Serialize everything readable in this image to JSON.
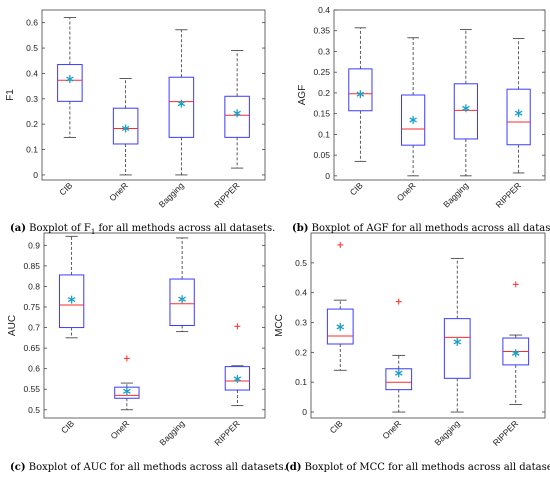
{
  "chart_data": [
    {
      "type": "boxplot",
      "panel": "a",
      "caption": {
        "tag": "(a)",
        "text": "Boxplot of F",
        "sub": "1",
        "tail": " for all methods across all datasets."
      },
      "ylabel": "F1",
      "ylim": [
        -0.02,
        0.65
      ],
      "yticks": [
        0,
        0.1,
        0.2,
        0.3,
        0.4,
        0.5,
        0.6
      ],
      "tick_labels": [
        "0",
        "0.1",
        "0.2",
        "0.3",
        "0.4",
        "0.5",
        "0.6"
      ],
      "categories": [
        "CIB",
        "OneR",
        "Bagging",
        "RIPPER"
      ],
      "boxes": [
        {
          "name": "CIB",
          "whisker_low": 0.148,
          "q1": 0.29,
          "median": 0.373,
          "q3": 0.435,
          "whisker_high": 0.62,
          "mean": 0.378,
          "outliers": []
        },
        {
          "name": "OneR",
          "whisker_low": 0.0,
          "q1": 0.122,
          "median": 0.183,
          "q3": 0.263,
          "whisker_high": 0.38,
          "mean": 0.183,
          "outliers": []
        },
        {
          "name": "Bagging",
          "whisker_low": 0.0,
          "q1": 0.148,
          "median": 0.289,
          "q3": 0.385,
          "whisker_high": 0.572,
          "mean": 0.281,
          "outliers": []
        },
        {
          "name": "RIPPER",
          "whisker_low": 0.027,
          "q1": 0.148,
          "median": 0.235,
          "q3": 0.31,
          "whisker_high": 0.49,
          "mean": 0.243,
          "outliers": []
        }
      ]
    },
    {
      "type": "boxplot",
      "panel": "b",
      "caption": {
        "tag": "(b)",
        "text": "Boxplot of AGF for all methods across all datasets."
      },
      "ylabel": "AGF",
      "ylim": [
        -0.01,
        0.4
      ],
      "yticks": [
        0,
        0.05,
        0.1,
        0.15,
        0.2,
        0.25,
        0.3,
        0.35,
        0.4
      ],
      "tick_labels": [
        "0",
        "0.05",
        "0.1",
        "0.15",
        "0.2",
        "0.25",
        "0.3",
        "0.35",
        "0.4"
      ],
      "categories": [
        "CIB",
        "OneR",
        "Bagging",
        "RIPPER"
      ],
      "boxes": [
        {
          "name": "CIB",
          "whisker_low": 0.035,
          "q1": 0.157,
          "median": 0.198,
          "q3": 0.258,
          "whisker_high": 0.357,
          "mean": 0.197,
          "outliers": []
        },
        {
          "name": "OneR",
          "whisker_low": 0.0,
          "q1": 0.074,
          "median": 0.113,
          "q3": 0.195,
          "whisker_high": 0.333,
          "mean": 0.135,
          "outliers": []
        },
        {
          "name": "Bagging",
          "whisker_low": 0.0,
          "q1": 0.089,
          "median": 0.158,
          "q3": 0.222,
          "whisker_high": 0.353,
          "mean": 0.163,
          "outliers": []
        },
        {
          "name": "RIPPER",
          "whisker_low": 0.007,
          "q1": 0.075,
          "median": 0.13,
          "q3": 0.209,
          "whisker_high": 0.331,
          "mean": 0.151,
          "outliers": []
        }
      ]
    },
    {
      "type": "boxplot",
      "panel": "c",
      "caption": {
        "tag": "(c)",
        "text": "Boxplot of AUC for all methods across all datasets."
      },
      "ylabel": "AUC",
      "ylim": [
        0.48,
        0.93
      ],
      "yticks": [
        0.5,
        0.55,
        0.6,
        0.65,
        0.7,
        0.75,
        0.8,
        0.85,
        0.9
      ],
      "tick_labels": [
        "0.5",
        "0.55",
        "0.6",
        "0.65",
        "0.7",
        "0.75",
        "0.8",
        "0.85",
        "0.9"
      ],
      "categories": [
        "CIB",
        "OneR",
        "Bagging",
        "RIPPER"
      ],
      "boxes": [
        {
          "name": "CIB",
          "whisker_low": 0.675,
          "q1": 0.7,
          "median": 0.755,
          "q3": 0.828,
          "whisker_high": 0.922,
          "mean": 0.768,
          "outliers": []
        },
        {
          "name": "OneR",
          "whisker_low": 0.5,
          "q1": 0.528,
          "median": 0.535,
          "q3": 0.555,
          "whisker_high": 0.565,
          "mean": 0.545,
          "outliers": [
            0.625
          ]
        },
        {
          "name": "Bagging",
          "whisker_low": 0.69,
          "q1": 0.705,
          "median": 0.758,
          "q3": 0.818,
          "whisker_high": 0.918,
          "mean": 0.769,
          "outliers": []
        },
        {
          "name": "RIPPER",
          "whisker_low": 0.51,
          "q1": 0.548,
          "median": 0.57,
          "q3": 0.605,
          "whisker_high": 0.607,
          "mean": 0.575,
          "outliers": [
            0.703
          ]
        }
      ]
    },
    {
      "type": "boxplot",
      "panel": "d",
      "caption": {
        "tag": "(d)",
        "text": "Boxplot of MCC for all methods across all datasets."
      },
      "ylabel": "MCC",
      "ylim": [
        -0.02,
        0.6
      ],
      "yticks": [
        0,
        0.1,
        0.2,
        0.3,
        0.4,
        0.5
      ],
      "tick_labels": [
        "0",
        "0.1",
        "0.2",
        "0.3",
        "0.4",
        "0.5"
      ],
      "categories": [
        "CIB",
        "OneR",
        "Bagging",
        "RIPPER"
      ],
      "boxes": [
        {
          "name": "CIB",
          "whisker_low": 0.14,
          "q1": 0.228,
          "median": 0.255,
          "q3": 0.345,
          "whisker_high": 0.375,
          "mean": 0.285,
          "outliers": [
            0.56
          ]
        },
        {
          "name": "OneR",
          "whisker_low": 0.0,
          "q1": 0.075,
          "median": 0.1,
          "q3": 0.145,
          "whisker_high": 0.19,
          "mean": 0.13,
          "outliers": [
            0.37
          ]
        },
        {
          "name": "Bagging",
          "whisker_low": 0.0,
          "q1": 0.113,
          "median": 0.25,
          "q3": 0.313,
          "whisker_high": 0.515,
          "mean": 0.235,
          "outliers": []
        },
        {
          "name": "RIPPER",
          "whisker_low": 0.025,
          "q1": 0.158,
          "median": 0.203,
          "q3": 0.248,
          "whisker_high": 0.258,
          "mean": 0.197,
          "outliers": [
            0.428
          ]
        }
      ]
    }
  ],
  "colors": {
    "box": "#3b3bff",
    "median": "#ff2a2a",
    "mean": "#1aa0c8",
    "outlier": "#ff2a2a",
    "whisker": "#333333",
    "axis": "#444444"
  }
}
